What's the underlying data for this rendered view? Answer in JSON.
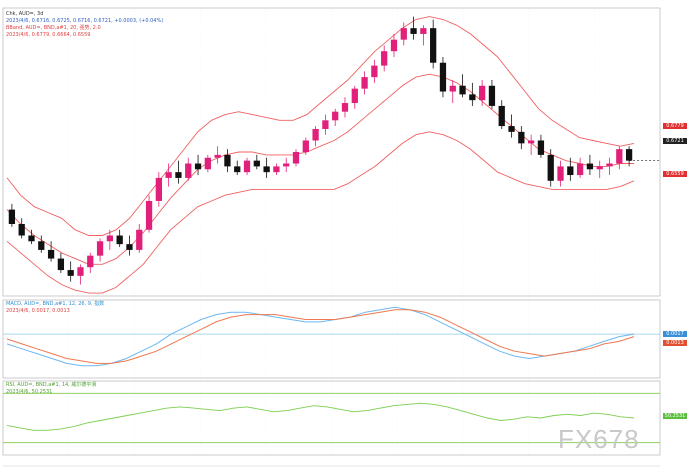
{
  "header": {
    "line1": "Chk, AUD=, 3d",
    "line2": "2023/4/6, 0.6716, 0.6725, 0.6716, 0.6721, +0.0003, (+0.04%)",
    "line3": "BBand, AUD=, BND,a#1, 20, 强势, 2.0",
    "line4": "2023/4/6, 0.6779, 0.6664, 0.6559"
  },
  "macd_header": {
    "line1": "MACD, AUD=, BND,a#1, 12, 26, 9, 指数",
    "line2": "2023/4/6, 0.0017, 0.0013"
  },
  "rsi_header": {
    "line1": "RSI, AUD=, BND,a#1, 14, 威尔德平滑",
    "line2": "2023/4/6, 50.2531"
  },
  "badges": {
    "upper": "0.6779",
    "last": "0.6721",
    "lower": "0.6559",
    "macd_a": "0.0017",
    "macd_b": "0.0013",
    "rsi": "50.2531"
  },
  "watermark": "FX678",
  "colors": {
    "up": "#e0207a",
    "down": "#111111",
    "band": "#f06060",
    "macd": "#6cb8f0",
    "signal": "#f07850",
    "rsi": "#7ccf50",
    "last": "#222222",
    "hline": "#a8d8f0"
  },
  "chart_data": {
    "type": "candlestick",
    "ylim": [
      0.625,
      0.725
    ],
    "bollinger": {
      "upper": [
        0.666,
        0.66,
        0.656,
        0.654,
        0.652,
        0.648,
        0.646,
        0.646,
        0.648,
        0.652,
        0.658,
        0.664,
        0.67,
        0.676,
        0.682,
        0.686,
        0.688,
        0.689,
        0.688,
        0.687,
        0.686,
        0.686,
        0.688,
        0.692,
        0.696,
        0.7,
        0.705,
        0.71,
        0.714,
        0.718,
        0.721,
        0.722,
        0.721,
        0.719,
        0.716,
        0.712,
        0.708,
        0.702,
        0.696,
        0.69,
        0.686,
        0.683,
        0.68,
        0.679,
        0.678,
        0.677,
        0.678
      ],
      "middle": [
        0.655,
        0.65,
        0.646,
        0.643,
        0.64,
        0.638,
        0.636,
        0.636,
        0.638,
        0.642,
        0.647,
        0.653,
        0.659,
        0.664,
        0.669,
        0.672,
        0.674,
        0.675,
        0.675,
        0.674,
        0.674,
        0.674,
        0.675,
        0.677,
        0.679,
        0.682,
        0.686,
        0.69,
        0.694,
        0.698,
        0.701,
        0.702,
        0.701,
        0.699,
        0.696,
        0.692,
        0.688,
        0.684,
        0.68,
        0.676,
        0.674,
        0.672,
        0.671,
        0.67,
        0.67,
        0.671,
        0.671
      ],
      "lower": [
        0.644,
        0.64,
        0.636,
        0.632,
        0.629,
        0.627,
        0.626,
        0.626,
        0.628,
        0.632,
        0.636,
        0.642,
        0.648,
        0.652,
        0.656,
        0.658,
        0.66,
        0.661,
        0.662,
        0.662,
        0.662,
        0.662,
        0.662,
        0.662,
        0.662,
        0.664,
        0.667,
        0.67,
        0.674,
        0.678,
        0.681,
        0.682,
        0.681,
        0.679,
        0.676,
        0.672,
        0.668,
        0.666,
        0.664,
        0.663,
        0.662,
        0.662,
        0.662,
        0.662,
        0.662,
        0.663,
        0.665
      ]
    },
    "candles": [
      [
        0.655,
        0.657,
        0.649,
        0.65
      ],
      [
        0.65,
        0.652,
        0.645,
        0.646
      ],
      [
        0.646,
        0.648,
        0.643,
        0.644
      ],
      [
        0.644,
        0.646,
        0.64,
        0.641
      ],
      [
        0.641,
        0.644,
        0.637,
        0.638
      ],
      [
        0.638,
        0.64,
        0.633,
        0.634
      ],
      [
        0.634,
        0.637,
        0.63,
        0.632
      ],
      [
        0.632,
        0.636,
        0.629,
        0.635
      ],
      [
        0.635,
        0.64,
        0.633,
        0.639
      ],
      [
        0.639,
        0.645,
        0.637,
        0.644
      ],
      [
        0.644,
        0.648,
        0.641,
        0.646
      ],
      [
        0.646,
        0.648,
        0.642,
        0.643
      ],
      [
        0.643,
        0.646,
        0.639,
        0.641
      ],
      [
        0.641,
        0.65,
        0.64,
        0.648
      ],
      [
        0.648,
        0.66,
        0.647,
        0.658
      ],
      [
        0.658,
        0.668,
        0.656,
        0.666
      ],
      [
        0.666,
        0.671,
        0.663,
        0.668
      ],
      [
        0.668,
        0.672,
        0.664,
        0.666
      ],
      [
        0.666,
        0.673,
        0.665,
        0.671
      ],
      [
        0.671,
        0.674,
        0.667,
        0.669
      ],
      [
        0.669,
        0.674,
        0.668,
        0.673
      ],
      [
        0.673,
        0.677,
        0.671,
        0.674
      ],
      [
        0.674,
        0.676,
        0.668,
        0.67
      ],
      [
        0.67,
        0.672,
        0.667,
        0.668
      ],
      [
        0.668,
        0.673,
        0.667,
        0.672
      ],
      [
        0.672,
        0.674,
        0.669,
        0.67
      ],
      [
        0.67,
        0.673,
        0.666,
        0.668
      ],
      [
        0.668,
        0.671,
        0.667,
        0.67
      ],
      [
        0.67,
        0.673,
        0.668,
        0.671
      ],
      [
        0.671,
        0.676,
        0.67,
        0.675
      ],
      [
        0.675,
        0.68,
        0.674,
        0.679
      ],
      [
        0.679,
        0.684,
        0.677,
        0.683
      ],
      [
        0.683,
        0.688,
        0.681,
        0.686
      ],
      [
        0.686,
        0.69,
        0.684,
        0.689
      ],
      [
        0.689,
        0.694,
        0.687,
        0.692
      ],
      [
        0.692,
        0.698,
        0.69,
        0.697
      ],
      [
        0.697,
        0.703,
        0.695,
        0.701
      ],
      [
        0.701,
        0.707,
        0.699,
        0.705
      ],
      [
        0.705,
        0.712,
        0.703,
        0.71
      ],
      [
        0.71,
        0.716,
        0.708,
        0.714
      ],
      [
        0.714,
        0.72,
        0.712,
        0.718
      ],
      [
        0.718,
        0.722,
        0.714,
        0.716
      ],
      [
        0.716,
        0.719,
        0.712,
        0.718
      ],
      [
        0.718,
        0.721,
        0.704,
        0.706
      ],
      [
        0.706,
        0.708,
        0.694,
        0.696
      ],
      [
        0.696,
        0.7,
        0.692,
        0.698
      ],
      [
        0.698,
        0.702,
        0.694,
        0.695
      ],
      [
        0.695,
        0.699,
        0.691,
        0.693
      ]
    ],
    "candles_b": [
      [
        0.693,
        0.7,
        0.691,
        0.698
      ],
      [
        0.698,
        0.7,
        0.69,
        0.691
      ],
      [
        0.691,
        0.693,
        0.683,
        0.684
      ],
      [
        0.684,
        0.688,
        0.68,
        0.682
      ],
      [
        0.682,
        0.684,
        0.676,
        0.678
      ],
      [
        0.678,
        0.681,
        0.674,
        0.679
      ],
      [
        0.679,
        0.681,
        0.673,
        0.674
      ],
      [
        0.674,
        0.676,
        0.663,
        0.665
      ],
      [
        0.665,
        0.672,
        0.663,
        0.67
      ],
      [
        0.67,
        0.673,
        0.665,
        0.667
      ],
      [
        0.667,
        0.673,
        0.666,
        0.671
      ],
      [
        0.671,
        0.674,
        0.667,
        0.669
      ],
      [
        0.669,
        0.672,
        0.666,
        0.67
      ],
      [
        0.67,
        0.673,
        0.667,
        0.671
      ],
      [
        0.671,
        0.677,
        0.669,
        0.676
      ],
      [
        0.676,
        0.677,
        0.67,
        0.672
      ]
    ],
    "macd": {
      "line": [
        -0.002,
        -0.004,
        -0.006,
        -0.008,
        -0.01,
        -0.011,
        -0.011,
        -0.01,
        -0.008,
        -0.005,
        -0.002,
        0.002,
        0.005,
        0.008,
        0.01,
        0.011,
        0.011,
        0.01,
        0.009,
        0.008,
        0.007,
        0.007,
        0.008,
        0.009,
        0.011,
        0.012,
        0.013,
        0.012,
        0.01,
        0.007,
        0.004,
        0.001,
        -0.002,
        -0.005,
        -0.007,
        -0.008,
        -0.007,
        -0.006,
        -0.005,
        -0.003,
        -0.001,
        0.001,
        0.002
      ],
      "signal": [
        0.0,
        -0.002,
        -0.004,
        -0.006,
        -0.008,
        -0.009,
        -0.01,
        -0.01,
        -0.009,
        -0.007,
        -0.005,
        -0.002,
        0.001,
        0.004,
        0.007,
        0.009,
        0.01,
        0.01,
        0.01,
        0.009,
        0.008,
        0.008,
        0.008,
        0.009,
        0.01,
        0.011,
        0.012,
        0.012,
        0.011,
        0.009,
        0.006,
        0.003,
        0.0,
        -0.003,
        -0.005,
        -0.006,
        -0.007,
        -0.006,
        -0.005,
        -0.004,
        -0.002,
        -0.001,
        0.001
      ],
      "ylim": [
        -0.016,
        0.016
      ],
      "hline": 0.002
    },
    "rsi": {
      "values": [
        44,
        42,
        40,
        40,
        41,
        43,
        46,
        48,
        50,
        52,
        54,
        56,
        58,
        59,
        58,
        57,
        56,
        58,
        59,
        57,
        55,
        56,
        58,
        60,
        59,
        57,
        55,
        56,
        58,
        60,
        61,
        62,
        61,
        59,
        56,
        53,
        50,
        48,
        49,
        51,
        50,
        52,
        53,
        52,
        54,
        53,
        51,
        50
      ],
      "ylim": [
        20,
        80
      ],
      "levels": [
        70,
        30
      ]
    }
  }
}
